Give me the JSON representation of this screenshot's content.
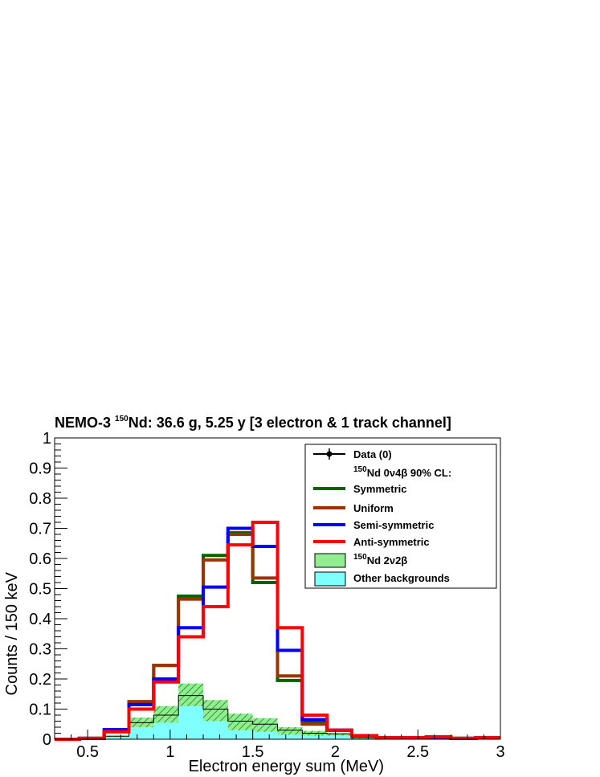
{
  "chart_data": {
    "type": "line",
    "title_parts": {
      "prefix": "NEMO-3 ",
      "sup": "150",
      "rest": "Nd: 36.6 g, 5.25 y [3 electron & 1 track channel]"
    },
    "xlabel": "Electron energy sum (MeV)",
    "ylabel": "Counts / 150 keV",
    "xlim": [
      0.3,
      3.0
    ],
    "ylim": [
      0,
      1
    ],
    "x_ticks": [
      "0.5",
      "1",
      "1.5",
      "2",
      "2.5",
      "3"
    ],
    "y_ticks": [
      "0",
      "0.1",
      "0.2",
      "0.3",
      "0.4",
      "0.5",
      "0.6",
      "0.7",
      "0.8",
      "0.9",
      "1"
    ],
    "bin_edges": [
      0.3,
      0.45,
      0.6,
      0.75,
      0.9,
      1.05,
      1.2,
      1.35,
      1.5,
      1.65,
      1.8,
      1.95,
      2.1,
      2.25,
      2.4,
      2.55,
      2.7,
      2.85,
      3.0
    ],
    "legend": {
      "position": "top-right",
      "data_label": "Data (0)",
      "header_sup": "150",
      "header_rest": "Nd 0ν4β 90% CL:",
      "twonu_sup": "150",
      "twonu_rest": "Nd 2ν2β",
      "other_label": "Other backgrounds"
    },
    "series": [
      {
        "name": "Symmetric",
        "color": "#006400",
        "values": [
          0.0,
          0.003,
          0.025,
          0.12,
          0.245,
          0.475,
          0.61,
          0.685,
          0.52,
          0.195,
          0.06,
          0.03,
          0.012,
          0.005,
          0.005,
          0.006,
          0.003,
          0.005
        ]
      },
      {
        "name": "Uniform",
        "color": "#993300",
        "values": [
          0.0,
          0.003,
          0.025,
          0.125,
          0.245,
          0.465,
          0.595,
          0.68,
          0.535,
          0.21,
          0.05,
          0.03,
          0.01,
          0.005,
          0.005,
          0.006,
          0.003,
          0.005
        ]
      },
      {
        "name": "Semi-symmetric",
        "color": "#0000ff",
        "values": [
          0.0,
          0.003,
          0.032,
          0.115,
          0.2,
          0.37,
          0.505,
          0.7,
          0.64,
          0.295,
          0.065,
          0.03,
          0.012,
          0.005,
          0.005,
          0.006,
          0.003,
          0.005
        ]
      },
      {
        "name": "Anti-symmetric",
        "color": "#ff0000",
        "values": [
          0.0,
          0.003,
          0.025,
          0.1,
          0.19,
          0.34,
          0.44,
          0.645,
          0.72,
          0.37,
          0.08,
          0.03,
          0.012,
          0.005,
          0.005,
          0.008,
          0.003,
          0.005
        ]
      }
    ],
    "stack_2nu2b_total": [
      0.0,
      0.0,
      0.012,
      0.072,
      0.11,
      0.185,
      0.13,
      0.085,
      0.07,
      0.04,
      0.028,
      0.02,
      0.005,
      0.0,
      0.0,
      0.0,
      0.0,
      0.0
    ],
    "other_backgrounds": [
      0.0,
      0.0,
      0.008,
      0.04,
      0.055,
      0.11,
      0.06,
      0.03,
      0.025,
      0.015,
      0.012,
      0.012,
      0.002,
      0.0,
      0.0,
      0.0,
      0.0,
      0.0
    ],
    "stack_total_with_error_line": [
      0.0,
      0.0,
      0.01,
      0.055,
      0.08,
      0.145,
      0.1,
      0.06,
      0.05,
      0.03,
      0.02,
      0.018,
      0.005,
      0.0,
      0.0,
      0.0,
      0.0,
      0.0
    ],
    "colors": {
      "twonu_fill": "#90ee90",
      "twonu_hatch": "#339933",
      "other_fill": "#80ffff"
    }
  }
}
